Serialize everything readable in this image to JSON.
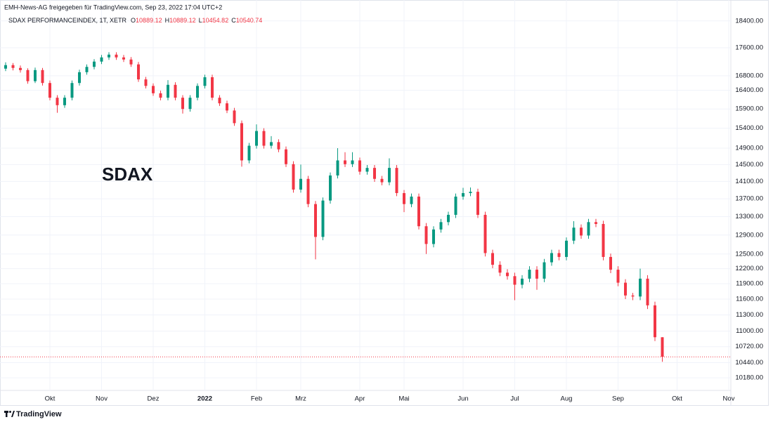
{
  "header": {
    "source": "EMH-News-AG freigegeben für TradingView.com, Sep 23, 2022 17:04 UTC+2",
    "symbol": "SDAX PERFORMANCEINDEX, 1T, XETR",
    "o_label": "O",
    "open": 10889.12,
    "h_label": "H",
    "high": 10889.12,
    "l_label": "L",
    "low": 10454.82,
    "c_label": "C",
    "close": 10540.74
  },
  "footer": {
    "brand": "TradingView"
  },
  "chart_data": {
    "type": "candlestick",
    "annotation": "SDAX",
    "log_scale": true,
    "grid": true,
    "up_color": "#089981",
    "down_color": "#f23645",
    "categories": [
      null,
      null,
      null,
      null,
      null,
      null,
      "Okt",
      null,
      null,
      null,
      null,
      null,
      null,
      "Nov",
      null,
      null,
      null,
      null,
      null,
      null,
      "Dez",
      null,
      null,
      null,
      null,
      null,
      null,
      "2022",
      null,
      null,
      null,
      null,
      null,
      null,
      "Feb",
      null,
      null,
      null,
      null,
      null,
      "Mrz",
      null,
      null,
      null,
      null,
      null,
      null,
      null,
      "Apr",
      null,
      null,
      null,
      null,
      null,
      "Mai",
      null,
      null,
      null,
      null,
      null,
      null,
      null,
      "Jun",
      null,
      null,
      null,
      null,
      null,
      null,
      "Jul",
      null,
      null,
      null,
      null,
      null,
      null,
      "Aug",
      null,
      null,
      null,
      null,
      null,
      null,
      "Sep",
      null,
      null,
      null,
      null,
      null,
      null,
      null,
      "Okt",
      null,
      null,
      null,
      null,
      null,
      null,
      "Nov"
    ],
    "open": [
      17000,
      17100,
      17020,
      16960,
      16650,
      16960,
      16600,
      16200,
      16000,
      16200,
      16600,
      16900,
      17050,
      17200,
      17320,
      17400,
      17320,
      17260,
      17120,
      16700,
      16520,
      16320,
      16200,
      16550,
      16200,
      15900,
      16200,
      16520,
      16760,
      16200,
      16050,
      15860,
      15530,
      14600,
      14960,
      15330,
      14960,
      15050,
      14870,
      14510,
      13910,
      14160,
      13580,
      12860,
      13660,
      14240,
      14600,
      14510,
      14600,
      14330,
      14420,
      14160,
      14080,
      14420,
      13830,
      13580,
      13750,
      13090,
      12710,
      13020,
      13180,
      13340,
      13750,
      13830,
      13860,
      13340,
      12520,
      12280,
      12120,
      12050,
      11880,
      12000,
      12180,
      12000,
      12330,
      12520,
      12440,
      12780,
      13060,
      12890,
      13180,
      13140,
      12440,
      12180,
      11920,
      11670,
      11650,
      12000,
      11480,
      10889.12,
      null,
      null,
      null,
      null,
      null,
      null,
      null,
      null,
      null
    ],
    "high": [
      17180,
      17160,
      17090,
      17010,
      17030,
      17020,
      16670,
      16270,
      16270,
      16670,
      16970,
      17120,
      17270,
      17390,
      17470,
      17470,
      17390,
      17330,
      17190,
      16770,
      16590,
      16390,
      16680,
      16620,
      16270,
      16270,
      16590,
      16830,
      16830,
      16270,
      16120,
      15930,
      15600,
      15030,
      15500,
      15400,
      15200,
      15120,
      14940,
      14580,
      14500,
      14230,
      13650,
      13730,
      14310,
      14900,
      14800,
      14800,
      14670,
      14490,
      14490,
      14230,
      14650,
      14490,
      13900,
      13820,
      13820,
      13160,
      13090,
      13250,
      13410,
      13820,
      13950,
      13960,
      13930,
      13410,
      12590,
      12350,
      12190,
      12120,
      12070,
      12250,
      12250,
      12400,
      12590,
      12590,
      12850,
      13200,
      13130,
      13250,
      13250,
      13210,
      12510,
      12250,
      11990,
      11720,
      12200,
      12070,
      11550,
      10889.12,
      null,
      null,
      null,
      null,
      null,
      null,
      null,
      null,
      null
    ],
    "low": [
      16930,
      16950,
      16890,
      16580,
      16600,
      16530,
      16130,
      15800,
      15930,
      16130,
      16530,
      16830,
      16980,
      17130,
      17250,
      17250,
      17190,
      17050,
      16630,
      16450,
      16250,
      16130,
      16130,
      16130,
      15780,
      15830,
      16130,
      16450,
      16130,
      15980,
      15790,
      15460,
      14450,
      14530,
      14890,
      14890,
      14890,
      14800,
      14440,
      13840,
      13840,
      13510,
      12390,
      12790,
      13590,
      14170,
      14440,
      14440,
      14260,
      14260,
      14090,
      14010,
      14010,
      13760,
      13400,
      13510,
      13020,
      12500,
      12640,
      12950,
      13110,
      13270,
      13680,
      13760,
      13270,
      12450,
      12210,
      12050,
      11980,
      11580,
      11810,
      11930,
      11780,
      11930,
      12260,
      12370,
      12370,
      12710,
      12820,
      12820,
      13070,
      12370,
      12110,
      11850,
      11600,
      11580,
      11580,
      11410,
      10820,
      10454.82,
      null,
      null,
      null,
      null,
      null,
      null,
      null,
      null,
      null
    ],
    "close": [
      17100,
      17020,
      16960,
      16650,
      16960,
      16600,
      16200,
      16000,
      16200,
      16600,
      16900,
      17050,
      17200,
      17320,
      17400,
      17320,
      17260,
      17120,
      16700,
      16520,
      16320,
      16200,
      16550,
      16200,
      15900,
      16200,
      16520,
      16760,
      16200,
      16050,
      15860,
      15530,
      14600,
      14960,
      15330,
      14960,
      15050,
      14870,
      14510,
      13910,
      14160,
      13580,
      12860,
      13660,
      14240,
      14600,
      14510,
      14600,
      14330,
      14420,
      14160,
      14080,
      14420,
      13830,
      13580,
      13750,
      13090,
      12710,
      13020,
      13180,
      13340,
      13750,
      13830,
      13860,
      13340,
      12520,
      12280,
      12120,
      12050,
      11880,
      12000,
      12180,
      12000,
      12330,
      12520,
      12440,
      12780,
      13060,
      12890,
      13180,
      13140,
      12440,
      12180,
      11920,
      11670,
      11650,
      12000,
      11480,
      10889.12,
      10540.74,
      null,
      null,
      null,
      null,
      null,
      null,
      null,
      null,
      null
    ],
    "ylim": [
      9970,
      19050
    ],
    "yticks": [
      {
        "value": 18400,
        "label": "18400.00"
      },
      {
        "value": 17600,
        "label": "17600.00"
      },
      {
        "value": 16800,
        "label": "16800.00"
      },
      {
        "value": 16400,
        "label": "16400.00"
      },
      {
        "value": 15900,
        "label": "15900.00"
      },
      {
        "value": 15400,
        "label": "15400.00"
      },
      {
        "value": 14900,
        "label": "14900.00"
      },
      {
        "value": 14500,
        "label": "14500.00"
      },
      {
        "value": 14100,
        "label": "14100.00"
      },
      {
        "value": 13700,
        "label": "13700.00"
      },
      {
        "value": 13300,
        "label": "13300.00"
      },
      {
        "value": 12900,
        "label": "12900.00"
      },
      {
        "value": 12500,
        "label": "12500.00"
      },
      {
        "value": 12200,
        "label": "12200.00"
      },
      {
        "value": 11900,
        "label": "11900.00"
      },
      {
        "value": 11600,
        "label": "11600.00"
      },
      {
        "value": 11300,
        "label": "11300.00"
      },
      {
        "value": 11000,
        "label": "11000.00"
      },
      {
        "value": 10720,
        "label": "10720.00"
      },
      {
        "value": 10440,
        "label": "10440.00"
      },
      {
        "value": 10180,
        "label": "10180.00"
      }
    ]
  }
}
